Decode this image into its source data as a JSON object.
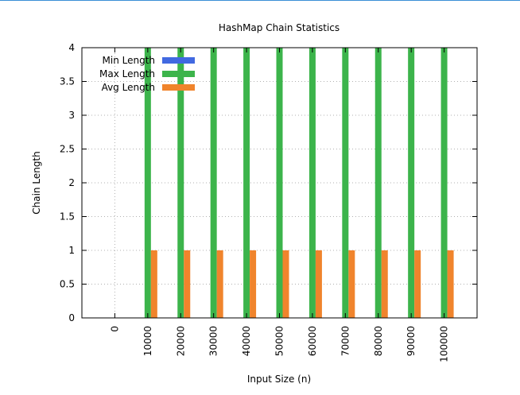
{
  "chart_data": {
    "type": "bar",
    "title": "HashMap Chain Statistics",
    "xlabel": "Input Size (n)",
    "ylabel": "Chain Length",
    "ylim": [
      0,
      4
    ],
    "y_ticks": [
      "0",
      "0.5",
      "1",
      "1.5",
      "2",
      "2.5",
      "3",
      "3.5",
      "4"
    ],
    "categories": [
      "0",
      "10000",
      "20000",
      "30000",
      "40000",
      "50000",
      "60000",
      "70000",
      "80000",
      "90000",
      "100000"
    ],
    "series": [
      {
        "name": "Min Length",
        "color": "#4169e1",
        "values": [
          0,
          0,
          0,
          0,
          0,
          0,
          0,
          0,
          0,
          0,
          0
        ]
      },
      {
        "name": "Max Length",
        "color": "#3cb44b",
        "values": [
          0,
          4,
          4,
          4,
          4,
          4,
          4,
          4,
          4,
          4,
          4
        ]
      },
      {
        "name": "Avg Length",
        "color": "#f0842c",
        "values": [
          0,
          1,
          1,
          1,
          1,
          1,
          1,
          1,
          1,
          1,
          1
        ]
      }
    ],
    "grid": true,
    "legend_position": "top-left"
  }
}
